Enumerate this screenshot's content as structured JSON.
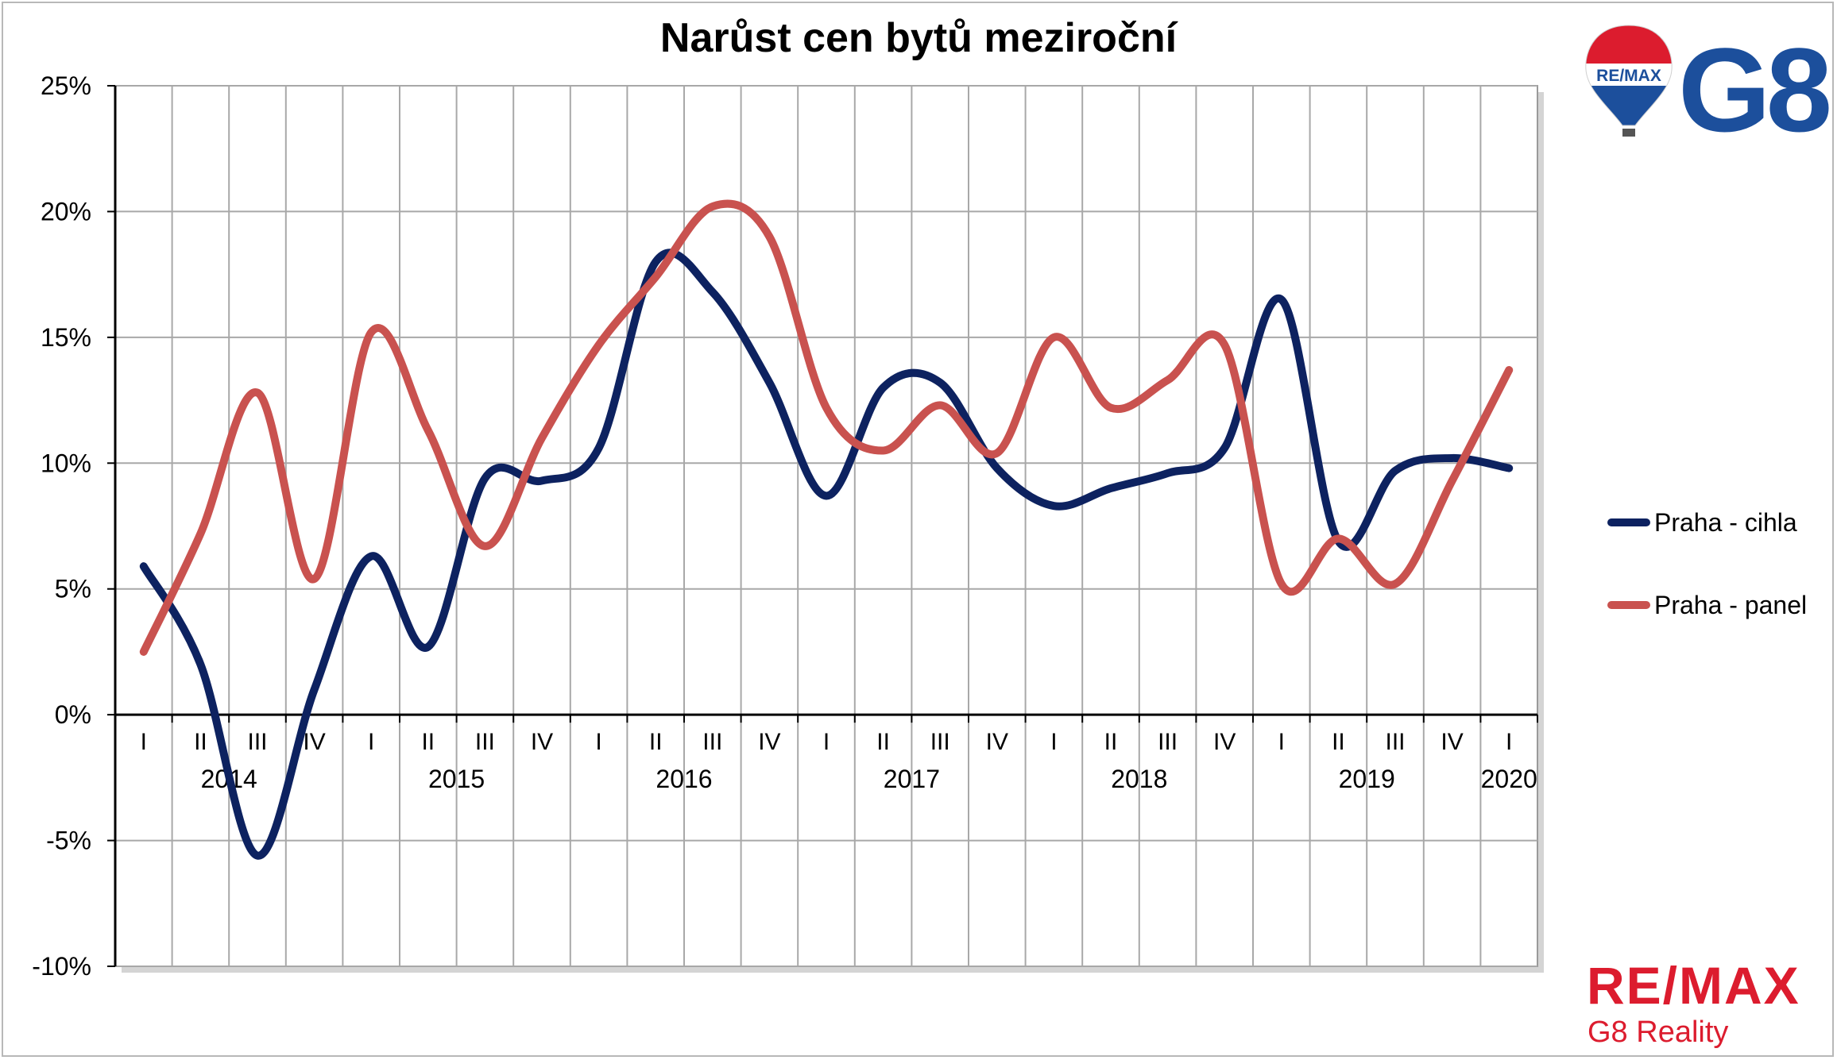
{
  "chart_data": {
    "type": "line",
    "title": "Narůst cen bytů meziroční",
    "quarters": [
      "I",
      "II",
      "III",
      "IV",
      "I",
      "II",
      "III",
      "IV",
      "I",
      "II",
      "III",
      "IV",
      "I",
      "II",
      "III",
      "IV",
      "I",
      "II",
      "III",
      "IV",
      "I",
      "II",
      "III",
      "IV",
      "I"
    ],
    "years": [
      {
        "label": "2014",
        "start": 0,
        "span": 4
      },
      {
        "label": "2015",
        "start": 4,
        "span": 4
      },
      {
        "label": "2016",
        "start": 8,
        "span": 4
      },
      {
        "label": "2017",
        "start": 12,
        "span": 4
      },
      {
        "label": "2018",
        "start": 16,
        "span": 4
      },
      {
        "label": "2019",
        "start": 20,
        "span": 4
      },
      {
        "label": "2020",
        "start": 24,
        "span": 1
      }
    ],
    "ylim": [
      -10,
      25
    ],
    "yticks": [
      "-10%",
      "-5%",
      "0%",
      "5%",
      "10%",
      "15%",
      "20%",
      "25%"
    ],
    "grid": true,
    "legend_position": "right",
    "series": [
      {
        "name": "Praha - cihla",
        "color": "#0d2260",
        "values": [
          5.9,
          2.0,
          -5.6,
          1.0,
          6.3,
          2.7,
          9.4,
          9.3,
          10.6,
          18.0,
          16.8,
          13.2,
          8.7,
          13.0,
          13.2,
          9.8,
          8.3,
          9.0,
          9.6,
          10.6,
          16.5,
          6.9,
          9.7,
          10.2,
          9.8
        ]
      },
      {
        "name": "Praha - panel",
        "color": "#c9524f",
        "values": [
          2.5,
          7.2,
          12.8,
          5.4,
          15.2,
          11.3,
          6.7,
          11.0,
          14.7,
          17.4,
          20.2,
          19.0,
          12.2,
          10.5,
          12.3,
          10.4,
          15.0,
          12.2,
          13.3,
          14.7,
          5.2,
          7.0,
          5.2,
          9.3,
          13.7
        ]
      }
    ]
  },
  "branding": {
    "logo_balloon_text": "RE/MAX",
    "logo_g8": "G8",
    "footer_brand": "RE/MAX",
    "footer_sub": "G8 Reality"
  }
}
